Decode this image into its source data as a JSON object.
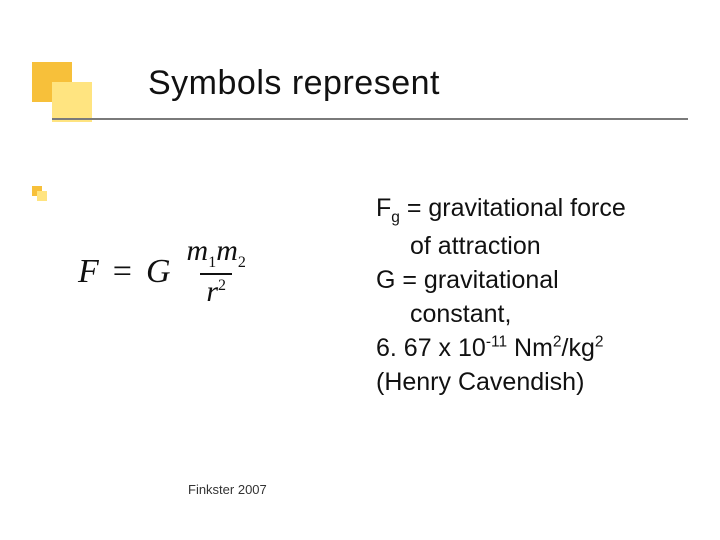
{
  "accent": {
    "dark": "#f7c03a",
    "light": "#ffe480",
    "rule": "#7a7a7a"
  },
  "title": "Symbols represent",
  "formula": {
    "lhs": "F",
    "eq": "=",
    "G": "G",
    "num_m1": "m",
    "num_s1": "1",
    "num_m2": "m",
    "num_s2": "2",
    "den_r": "r",
    "den_exp": "2"
  },
  "body": {
    "l1_pre": "F",
    "l1_sub": "g",
    "l1_post": " = gravitational force",
    "l2": "of attraction",
    "l3": "G = gravitational",
    "l4": "constant,",
    "l5_pre": "6. 67 x 10",
    "l5_sup1": "-11",
    "l5_mid": " Nm",
    "l5_sup2": "2",
    "l5_mid2": "/kg",
    "l5_sup3": "2",
    "l6": "(Henry Cavendish)"
  },
  "footer": "Finkster 2007"
}
